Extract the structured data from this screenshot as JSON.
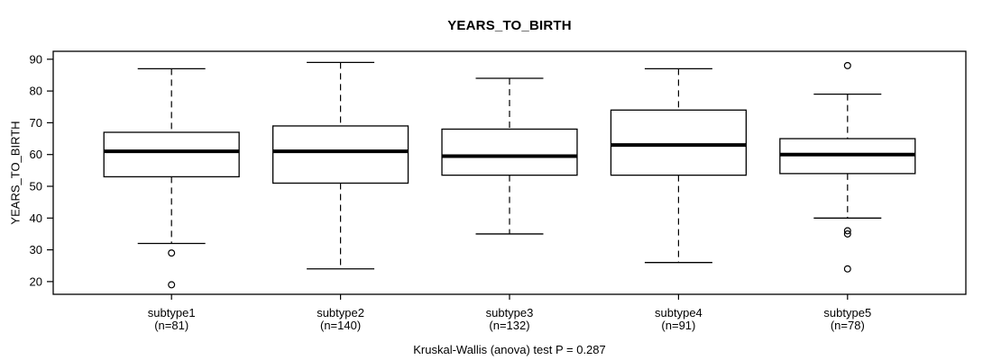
{
  "title": "YEARS_TO_BIRTH",
  "y_axis_title": "YEARS_TO_BIRTH",
  "caption": "Kruskal-Wallis (anova) test P = 0.287",
  "colors": {
    "line": "#000000",
    "box_fill": "#ffffff",
    "background": "#ffffff"
  },
  "chart_data": {
    "type": "boxplot",
    "title": "YEARS_TO_BIRTH",
    "xlabel": "",
    "ylabel": "YEARS_TO_BIRTH",
    "caption": "Kruskal-Wallis (anova) test P = 0.287",
    "p_value": 0.287,
    "test": "Kruskal-Wallis (anova)",
    "grid": false,
    "legend": false,
    "ylim": [
      16,
      92.5
    ],
    "y_ticks": [
      20,
      30,
      40,
      50,
      60,
      70,
      80,
      90
    ],
    "groups": [
      {
        "label": "subtype1",
        "n_label": "(n=81)",
        "n": 81,
        "whisker_low": 32,
        "q1": 53,
        "median": 61,
        "q3": 67,
        "whisker_high": 87,
        "outliers": [
          29,
          19
        ]
      },
      {
        "label": "subtype2",
        "n_label": "(n=140)",
        "n": 140,
        "whisker_low": 24,
        "q1": 51,
        "median": 61,
        "q3": 69,
        "whisker_high": 89,
        "outliers": []
      },
      {
        "label": "subtype3",
        "n_label": "(n=132)",
        "n": 132,
        "whisker_low": 35,
        "q1": 53.5,
        "median": 59.5,
        "q3": 68,
        "whisker_high": 84,
        "outliers": []
      },
      {
        "label": "subtype4",
        "n_label": "(n=91)",
        "n": 91,
        "whisker_low": 26,
        "q1": 53.5,
        "median": 63,
        "q3": 74,
        "whisker_high": 87,
        "outliers": []
      },
      {
        "label": "subtype5",
        "n_label": "(n=78)",
        "n": 78,
        "whisker_low": 40,
        "q1": 54,
        "median": 60,
        "q3": 65,
        "whisker_high": 79,
        "outliers": [
          88,
          36,
          35,
          24
        ]
      }
    ]
  }
}
